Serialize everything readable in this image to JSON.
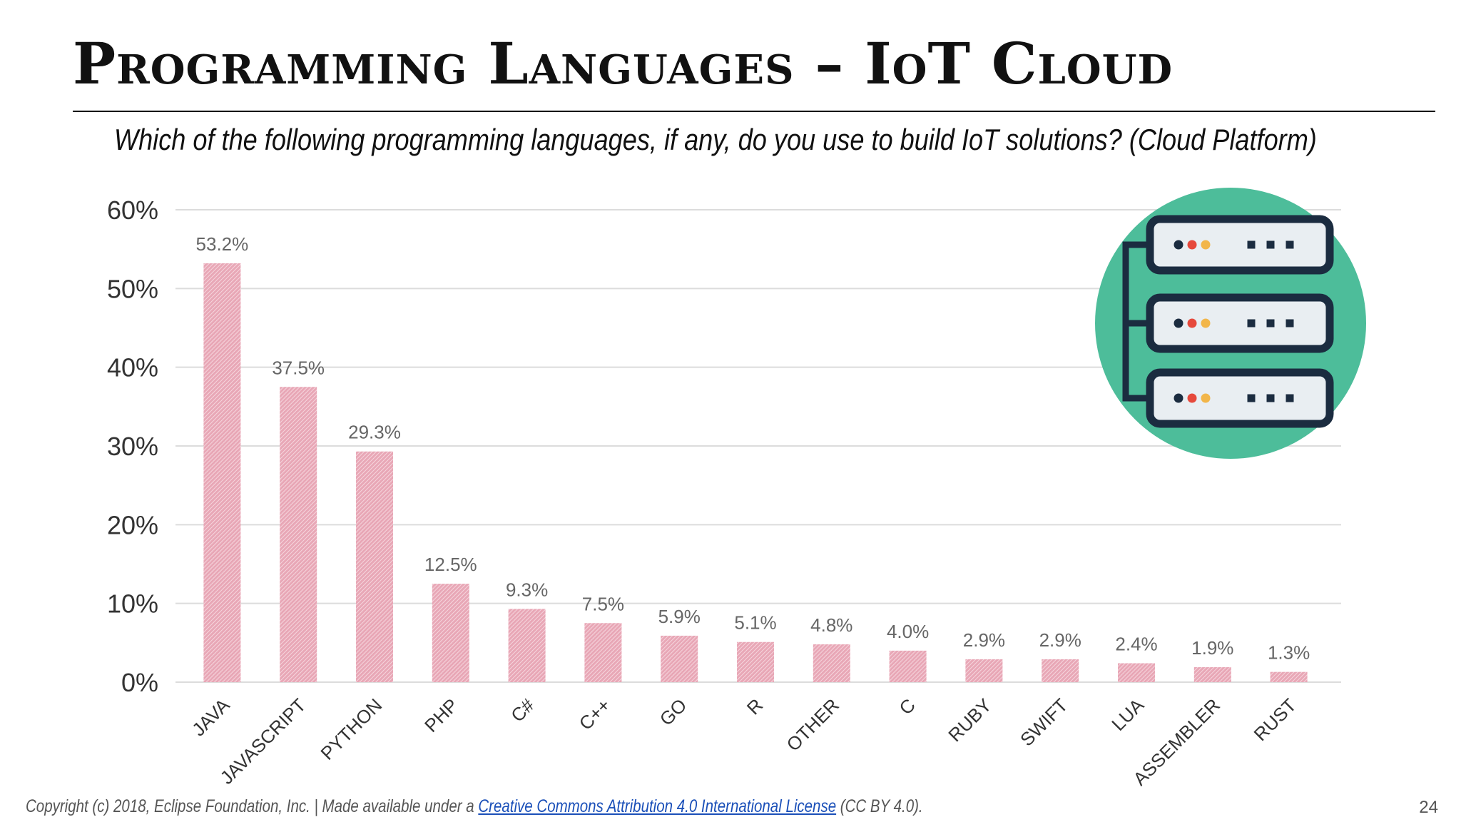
{
  "slide": {
    "title": "Programming Languages – IoT Cloud",
    "subtitle": "Which of the following programming languages, if any, do you use to build IoT solutions? (Cloud Platform)",
    "footer_prefix": "Copyright (c) 2018, Eclipse Foundation, Inc. | Made available under a ",
    "footer_link": "Creative Commons Attribution 4.0 International License",
    "footer_suffix": " (CC BY 4.0).",
    "page_number": "24"
  },
  "colors": {
    "bar": "#e8a7b6",
    "bar_hatch": "#f6d6de",
    "grid": "#dcdcdc",
    "axis_text": "#333333",
    "label_text": "#666666",
    "circle": "#4dbd9a",
    "server_outline": "#1b2c40",
    "server_fill": "#e9eef2",
    "led_dark": "#1b2c40",
    "led_red": "#e6493c",
    "led_yellow": "#f2b64a"
  },
  "chart_data": {
    "type": "bar",
    "categories": [
      "JAVA",
      "JAVASCRIPT",
      "PYTHON",
      "PHP",
      "C#",
      "C++",
      "GO",
      "R",
      "OTHER",
      "C",
      "RUBY",
      "SWIFT",
      "LUA",
      "ASSEMBLER",
      "RUST"
    ],
    "values": [
      53.2,
      37.5,
      29.3,
      12.5,
      9.3,
      7.5,
      5.9,
      5.1,
      4.8,
      4.0,
      2.9,
      2.9,
      2.4,
      1.9,
      1.3
    ],
    "value_labels": [
      "53.2%",
      "37.5%",
      "29.3%",
      "12.5%",
      "9.3%",
      "7.5%",
      "5.9%",
      "5.1%",
      "4.8%",
      "4.0%",
      "2.9%",
      "2.9%",
      "2.4%",
      "1.9%",
      "1.3%"
    ],
    "yticks": [
      "0%",
      "10%",
      "20%",
      "30%",
      "40%",
      "50%",
      "60%"
    ],
    "ylim": [
      0,
      60
    ],
    "grid": true,
    "title": "",
    "xlabel": "",
    "ylabel": ""
  }
}
